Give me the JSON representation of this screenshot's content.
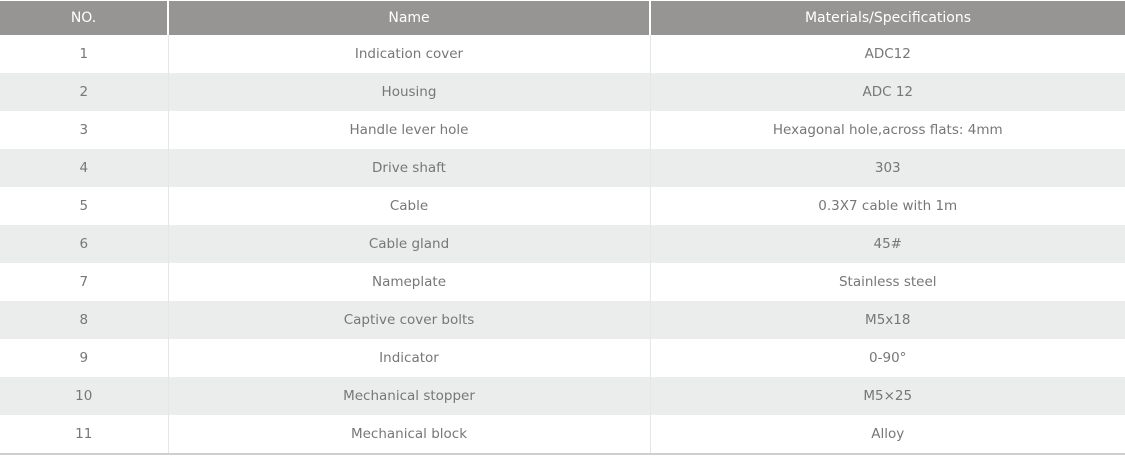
{
  "table": {
    "headers": [
      "NO.",
      "Name",
      "Materials/Specifications"
    ],
    "rows": [
      [
        "1",
        "Indication cover",
        "ADC12"
      ],
      [
        "2",
        "Housing",
        "ADC 12"
      ],
      [
        "3",
        "Handle lever hole",
        "Hexagonal hole,across flats: 4mm"
      ],
      [
        "4",
        "Drive shaft",
        "303"
      ],
      [
        "5",
        "Cable",
        "0.3X7 cable with 1m"
      ],
      [
        "6",
        "Cable gland",
        "45#"
      ],
      [
        "7",
        "Nameplate",
        "Stainless steel"
      ],
      [
        "8",
        "Captive cover bolts",
        "M5x18"
      ],
      [
        "9",
        "Indicator",
        "0-90°"
      ],
      [
        "10",
        "Mechanical stopper",
        "M5×25"
      ],
      [
        "11",
        "Mechanical block",
        "Alloy"
      ]
    ]
  },
  "colors": {
    "header_bg": "#979593",
    "stripe_bg": "#ebecec",
    "text": "#777777"
  }
}
